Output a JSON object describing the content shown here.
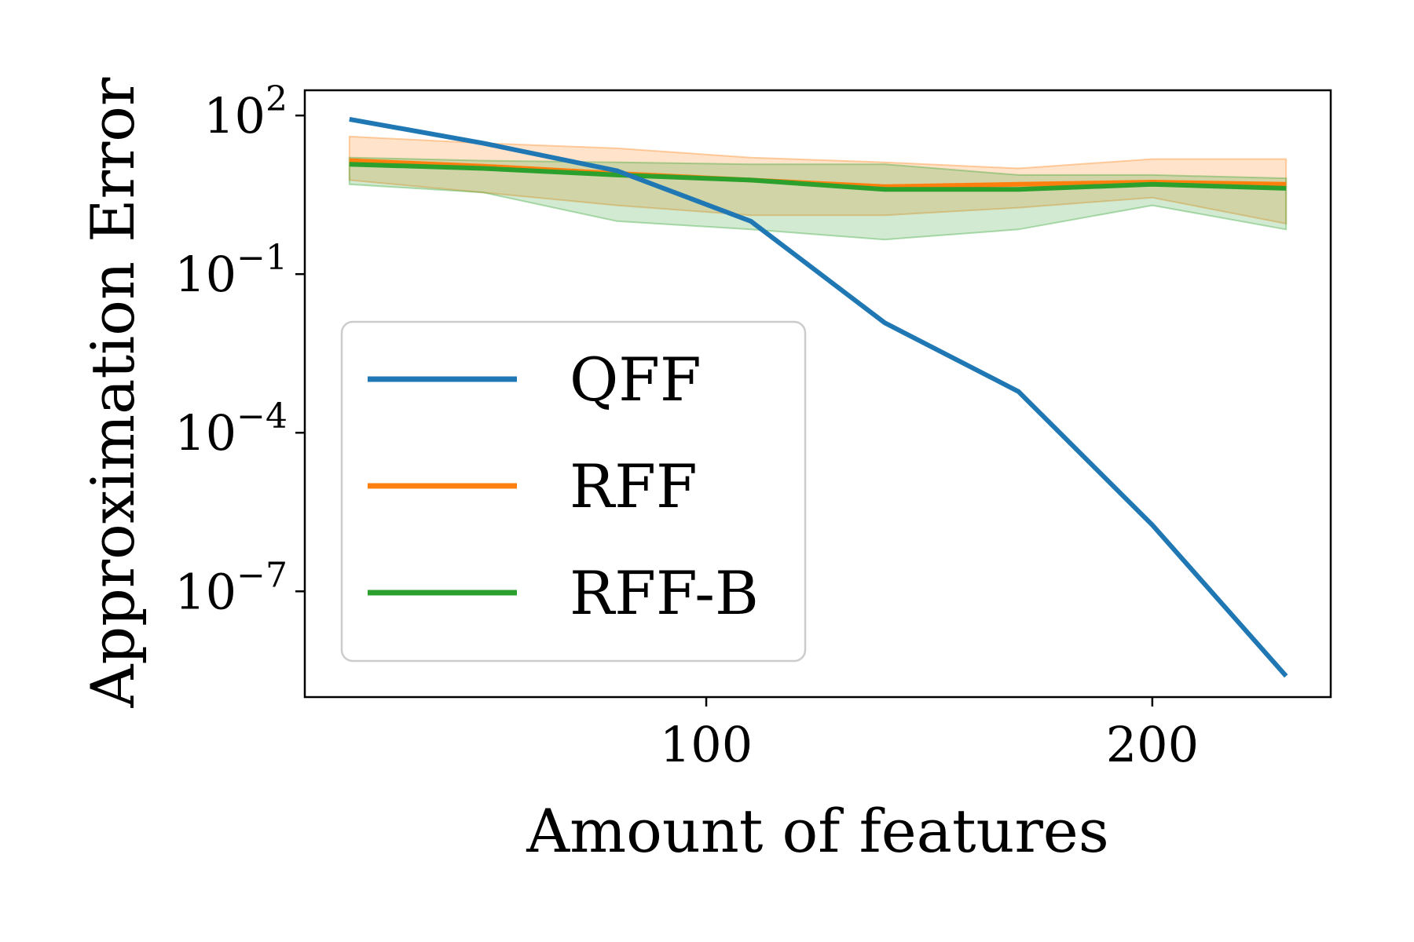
{
  "chart_data": {
    "type": "line",
    "xlabel": "Amount of features",
    "ylabel": "Approximation Error",
    "yscale": "log",
    "xlim": [
      10,
      240
    ],
    "ylim": [
      1e-09,
      300
    ],
    "x": [
      20,
      50,
      80,
      110,
      140,
      170,
      200,
      230
    ],
    "x_ticks": [
      {
        "value": 100,
        "label": "100"
      },
      {
        "value": 200,
        "label": "200"
      }
    ],
    "y_ticks": [
      {
        "value": 100,
        "base": "10",
        "exp": "2"
      },
      {
        "value": 0.1,
        "base": "10",
        "exp": "−1"
      },
      {
        "value": 0.0001,
        "base": "10",
        "exp": "−4"
      },
      {
        "value": 1e-07,
        "base": "10",
        "exp": "−7"
      }
    ],
    "legend_position": "lower-left",
    "grid": false,
    "series": [
      {
        "name": "QFF",
        "color": "#1f77b4",
        "values": [
          85,
          30,
          9,
          1.0,
          0.012,
          0.0006,
          1.8e-06,
          2.5e-09
        ]
      },
      {
        "name": "RFF",
        "color": "#ff7f0e",
        "values": [
          14,
          11,
          8,
          6,
          4.5,
          5,
          5.5,
          5
        ],
        "lower": [
          6,
          3.5,
          2,
          1.3,
          1.3,
          1.8,
          2.8,
          0.9
        ],
        "upper": [
          40,
          30,
          24,
          16,
          13,
          10,
          15,
          15
        ]
      },
      {
        "name": "RFF-B",
        "color": "#2ca02c",
        "values": [
          12,
          10,
          7.5,
          6,
          4,
          4,
          5,
          4.2
        ],
        "lower": [
          5,
          3.5,
          1.0,
          0.7,
          0.45,
          0.7,
          2,
          0.7
        ],
        "upper": [
          16,
          14,
          13,
          12,
          12,
          7.5,
          7.5,
          6.5
        ]
      }
    ]
  }
}
